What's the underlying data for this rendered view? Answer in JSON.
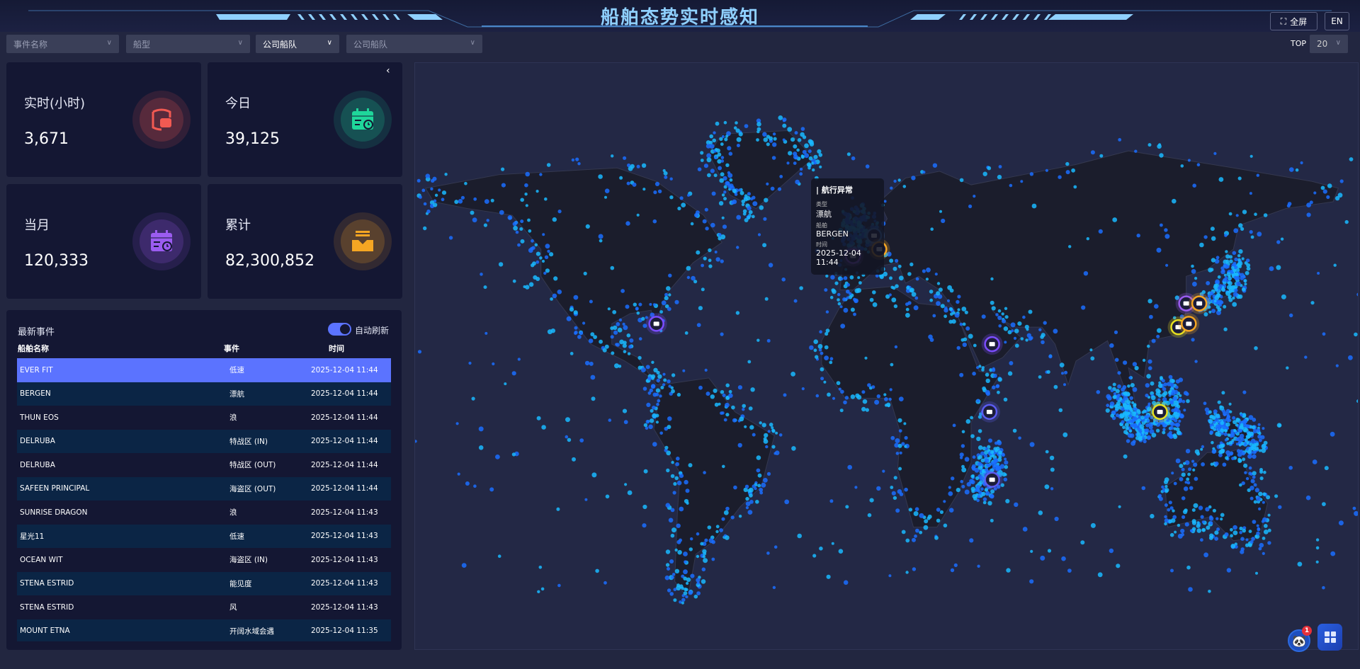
{
  "header": {
    "title": "船舶态势实时感知",
    "fullscreen_label": "全屏",
    "lang_label": "EN"
  },
  "filters": [
    {
      "placeholder": "事件名称",
      "value": ""
    },
    {
      "placeholder": "船型",
      "value": ""
    },
    {
      "placeholder": "",
      "value": "公司船队"
    },
    {
      "placeholder": "公司船队",
      "value": ""
    }
  ],
  "top": {
    "label": "TOP",
    "value": "20"
  },
  "stats": [
    {
      "label": "实时(小时)",
      "value": "3,671",
      "icon": "database-icon",
      "color": "#f25a52"
    },
    {
      "label": "今日",
      "value": "39,125",
      "icon": "calendar-clock-icon",
      "color": "#1fd69a"
    },
    {
      "label": "当月",
      "value": "120,333",
      "icon": "calendar-clock-icon",
      "color": "#9b5cf0"
    },
    {
      "label": "累计",
      "value": "82,300,852",
      "icon": "inbox-icon",
      "color": "#f5a623"
    }
  ],
  "events": {
    "title": "最新事件",
    "auto_refresh_label": "自动刷新",
    "auto_refresh": true,
    "columns": [
      "船舶名称",
      "事件",
      "时间"
    ],
    "rows": [
      {
        "ship": "EVER FIT",
        "event": "低速",
        "time": "2025-12-04 11:44",
        "selected": true
      },
      {
        "ship": "BERGEN",
        "event": "漂航",
        "time": "2025-12-04 11:44"
      },
      {
        "ship": "THUN EOS",
        "event": "浪",
        "time": "2025-12-04 11:44"
      },
      {
        "ship": "DELRUBA",
        "event": "特战区 (IN)",
        "time": "2025-12-04 11:44"
      },
      {
        "ship": "DELRUBA",
        "event": "特战区 (OUT)",
        "time": "2025-12-04 11:44"
      },
      {
        "ship": "SAFEEN PRINCIPAL",
        "event": "海盗区 (OUT)",
        "time": "2025-12-04 11:44"
      },
      {
        "ship": "SUNRISE DRAGON",
        "event": "浪",
        "time": "2025-12-04 11:43"
      },
      {
        "ship": "星光11",
        "event": "低速",
        "time": "2025-12-04 11:43"
      },
      {
        "ship": "OCEAN WIT",
        "event": "海盗区 (IN)",
        "time": "2025-12-04 11:43"
      },
      {
        "ship": "STENA ESTRID",
        "event": "能见度",
        "time": "2025-12-04 11:43"
      },
      {
        "ship": "STENA ESTRID",
        "event": "风",
        "time": "2025-12-04 11:43"
      },
      {
        "ship": "MOUNT ETNA",
        "event": "开阔水域会遇",
        "time": "2025-12-04 11:35"
      }
    ]
  },
  "tooltip": {
    "title": "| 航行异常",
    "type_label": "类型",
    "type_value": "漂航",
    "ship_label": "船舶",
    "ship_value": "BERGEN",
    "time_label": "时间",
    "time_value": "2025-12-04 11:44"
  },
  "assistant": {
    "badge": "1"
  },
  "colors": {
    "accent": "#5b73ff",
    "title": "#8fd0ff",
    "dots": "#1f8bff",
    "panel": "#141733",
    "background": "#222640"
  }
}
